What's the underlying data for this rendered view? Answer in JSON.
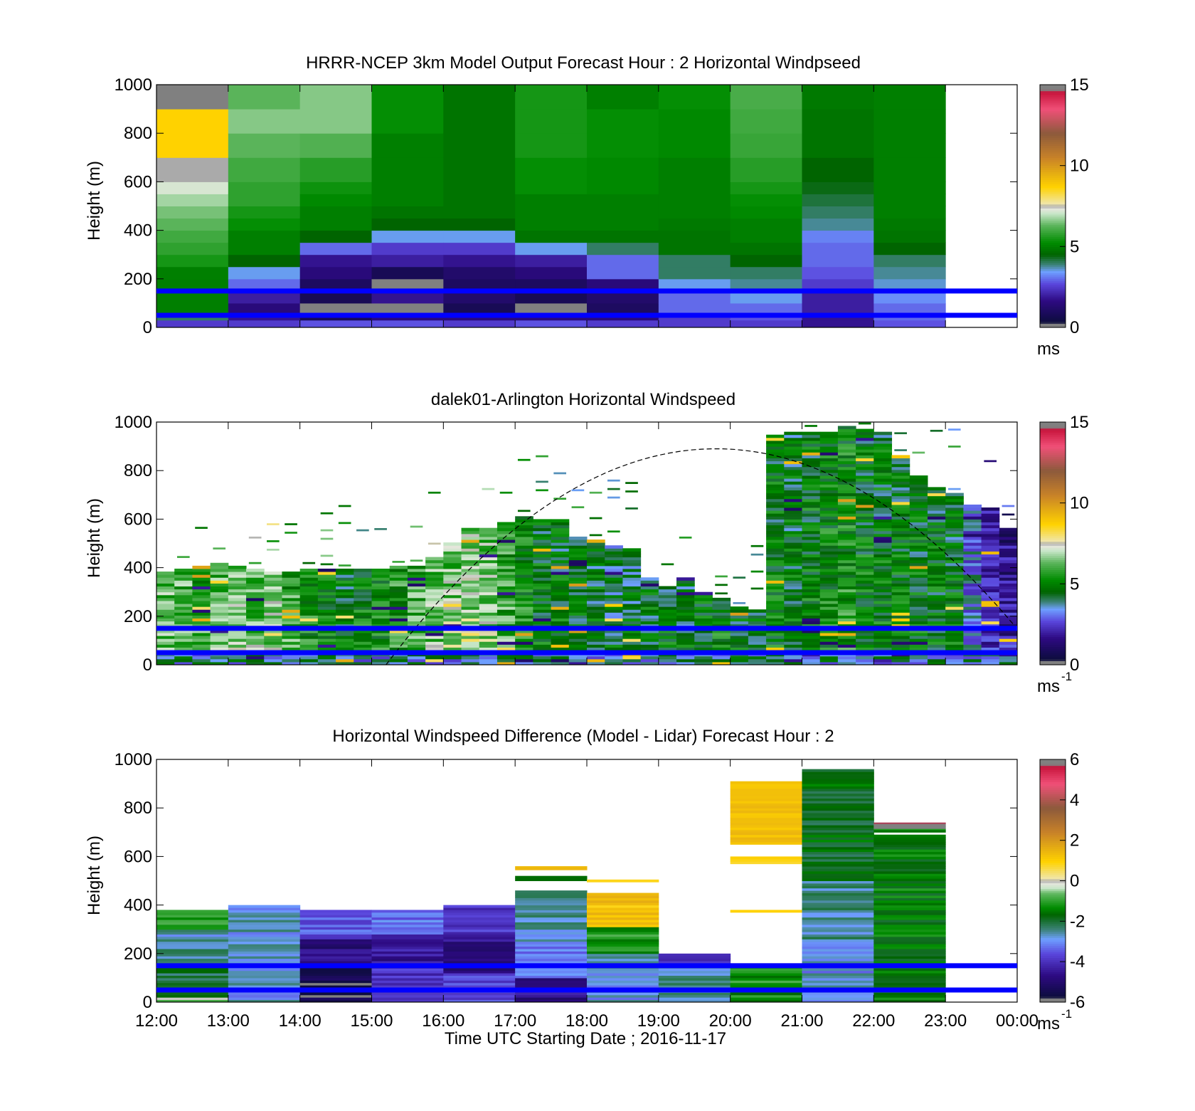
{
  "figure": {
    "xlabel": "Time UTC  Starting Date ; 2016-11-17",
    "ref_lines_m": [
      150,
      50
    ],
    "ref_line_color": "#0000ff"
  },
  "chart_data": [
    {
      "type": "heatmap",
      "title": "HRRR-NCEP 3km Model Output   Forecast Hour : 2 Horizontal Windpseed",
      "ylabel": "Height (m)",
      "ylim": [
        0,
        1000
      ],
      "yticks": [
        "0",
        "200",
        "400",
        "600",
        "800",
        "1000"
      ],
      "colorbar": {
        "ticks": [
          "0",
          "5",
          "10",
          "15"
        ],
        "range": [
          0,
          15
        ],
        "unit_label": "ms",
        "unit_sup": ""
      },
      "x": [
        "12:00",
        "13:00",
        "14:00",
        "15:00",
        "16:00",
        "17:00",
        "18:00",
        "19:00",
        "20:00",
        "21:00",
        "22:00"
      ],
      "bins_m": [
        [
          0,
          30
        ],
        [
          30,
          50
        ],
        [
          50,
          100
        ],
        [
          100,
          150
        ],
        [
          150,
          200
        ],
        [
          200,
          250
        ],
        [
          250,
          300
        ],
        [
          300,
          350
        ],
        [
          350,
          400
        ],
        [
          400,
          450
        ],
        [
          450,
          500
        ],
        [
          500,
          550
        ],
        [
          550,
          600
        ],
        [
          600,
          700
        ],
        [
          700,
          800
        ],
        [
          800,
          900
        ],
        [
          900,
          1000
        ]
      ],
      "values_ms": [
        [
          2.5,
          4.0,
          5.0,
          5.0,
          5.0,
          5.0,
          5.5,
          5.8,
          6.0,
          6.3,
          6.5,
          6.8,
          7.2,
          7.5,
          8.7,
          8.7,
          0.2
        ],
        [
          2.5,
          1.8,
          1.5,
          2.0,
          3.0,
          3.5,
          4.5,
          5.0,
          5.0,
          5.3,
          5.5,
          5.8,
          5.8,
          6.0,
          6.3,
          6.6,
          6.3
        ],
        [
          2.8,
          0.8,
          0.3,
          0.8,
          1.0,
          1.5,
          1.8,
          3.0,
          4.5,
          5.0,
          5.0,
          5.2,
          5.4,
          5.7,
          6.2,
          6.6,
          6.6
        ],
        [
          2.8,
          1.5,
          0.3,
          1.8,
          0.2,
          0.8,
          2.0,
          2.5,
          3.5,
          4.5,
          4.8,
          5.0,
          5.0,
          5.0,
          5.0,
          5.3,
          5.3
        ],
        [
          2.5,
          1.5,
          0.8,
          1.2,
          1.0,
          1.2,
          1.8,
          2.5,
          3.5,
          4.5,
          4.8,
          4.8,
          4.8,
          4.8,
          4.8,
          4.8,
          4.8
        ],
        [
          2.8,
          1.5,
          0.2,
          0.8,
          1.0,
          1.5,
          2.0,
          3.5,
          4.8,
          5.0,
          5.0,
          5.0,
          5.3,
          5.3,
          5.5,
          5.5,
          5.5
        ],
        [
          2.5,
          1.5,
          1.0,
          1.2,
          1.5,
          3.0,
          3.0,
          4.0,
          4.8,
          5.0,
          5.0,
          5.0,
          5.2,
          5.2,
          5.3,
          5.3,
          5.0
        ],
        [
          2.5,
          2.5,
          3.0,
          3.0,
          3.5,
          4.0,
          4.0,
          4.8,
          4.8,
          4.9,
          5.0,
          5.0,
          5.0,
          5.0,
          5.2,
          5.2,
          5.3
        ],
        [
          2.5,
          2.8,
          3.0,
          3.5,
          3.8,
          4.0,
          4.5,
          4.8,
          5.0,
          5.0,
          5.2,
          5.3,
          5.5,
          5.7,
          5.9,
          6.0,
          6.1
        ],
        [
          1.8,
          1.8,
          2.0,
          2.0,
          2.5,
          2.8,
          3.0,
          3.0,
          3.2,
          3.8,
          4.0,
          4.2,
          4.4,
          4.5,
          4.8,
          4.8,
          4.9
        ],
        [
          2.8,
          3.0,
          3.0,
          3.3,
          3.6,
          3.8,
          4.0,
          4.5,
          4.8,
          4.9,
          5.0,
          5.0,
          5.0,
          5.0,
          5.0,
          5.0,
          5.0
        ]
      ]
    },
    {
      "type": "heatmap",
      "title": "dalek01-Arlington  Horizontal Windspeed",
      "ylabel": "Height (m)",
      "ylim": [
        0,
        1000
      ],
      "yticks": [
        "0",
        "200",
        "400",
        "600",
        "800",
        "1000"
      ],
      "colorbar": {
        "ticks": [
          "0",
          "5",
          "10",
          "15"
        ],
        "range": [
          0,
          15
        ],
        "unit_label": "ms",
        "unit_sup": "-1"
      },
      "annotation": "dashed curve (boundary-layer height), peak ≈ 890 m near 19:30–20:00",
      "columns": [
        {
          "t": 0.0,
          "top": 380,
          "base": 6.5
        },
        {
          "t": 0.25,
          "top": 385,
          "base": 6.4
        },
        {
          "t": 0.5,
          "top": 400,
          "base": 6.0
        },
        {
          "t": 0.75,
          "top": 420,
          "base": 6.3
        },
        {
          "t": 1.0,
          "top": 400,
          "base": 6.8
        },
        {
          "t": 1.25,
          "top": 395,
          "base": 6.5
        },
        {
          "t": 1.5,
          "top": 380,
          "base": 6.7
        },
        {
          "t": 1.75,
          "top": 380,
          "base": 6.0
        },
        {
          "t": 2.0,
          "top": 395,
          "base": 5.5
        },
        {
          "t": 2.25,
          "top": 390,
          "base": 5.2
        },
        {
          "t": 2.5,
          "top": 385,
          "base": 5.0
        },
        {
          "t": 2.75,
          "top": 390,
          "base": 5.3
        },
        {
          "t": 3.0,
          "top": 395,
          "base": 5.4
        },
        {
          "t": 3.25,
          "top": 400,
          "base": 5.8
        },
        {
          "t": 3.5,
          "top": 405,
          "base": 6.2
        },
        {
          "t": 3.75,
          "top": 440,
          "base": 6.5
        },
        {
          "t": 4.0,
          "top": 500,
          "base": 6.7
        },
        {
          "t": 4.25,
          "top": 555,
          "base": 6.8
        },
        {
          "t": 4.5,
          "top": 560,
          "base": 6.7
        },
        {
          "t": 4.75,
          "top": 580,
          "base": 6.0
        },
        {
          "t": 5.0,
          "top": 610,
          "base": 5.5
        },
        {
          "t": 5.25,
          "top": 590,
          "base": 5.0
        },
        {
          "t": 5.5,
          "top": 590,
          "base": 4.9
        },
        {
          "t": 5.75,
          "top": 520,
          "base": 4.8
        },
        {
          "t": 6.0,
          "top": 510,
          "base": 4.8
        },
        {
          "t": 6.25,
          "top": 490,
          "base": 4.5
        },
        {
          "t": 6.5,
          "top": 480,
          "base": 4.6
        },
        {
          "t": 6.75,
          "top": 360,
          "base": 4.8
        },
        {
          "t": 7.0,
          "top": 320,
          "base": 5.0
        },
        {
          "t": 7.25,
          "top": 360,
          "base": 4.8
        },
        {
          "t": 7.5,
          "top": 300,
          "base": 5.0
        },
        {
          "t": 7.75,
          "top": 270,
          "base": 5.3
        },
        {
          "t": 8.0,
          "top": 230,
          "base": 5.0
        },
        {
          "t": 8.25,
          "top": 220,
          "base": 4.9
        },
        {
          "t": 8.5,
          "top": 940,
          "base": 5.0
        },
        {
          "t": 8.75,
          "top": 960,
          "base": 4.8
        },
        {
          "t": 9.0,
          "top": 960,
          "base": 5.1
        },
        {
          "t": 9.25,
          "top": 960,
          "base": 5.3
        },
        {
          "t": 9.5,
          "top": 980,
          "base": 5.5
        },
        {
          "t": 9.75,
          "top": 970,
          "base": 5.1
        },
        {
          "t": 10.0,
          "top": 950,
          "base": 5.0
        },
        {
          "t": 10.25,
          "top": 860,
          "base": 5.0
        },
        {
          "t": 10.5,
          "top": 780,
          "base": 5.0
        },
        {
          "t": 10.75,
          "top": 730,
          "base": 4.9
        },
        {
          "t": 11.0,
          "top": 700,
          "base": 4.9
        },
        {
          "t": 11.25,
          "top": 660,
          "base": 3.5
        },
        {
          "t": 11.5,
          "top": 640,
          "base": 2.5
        },
        {
          "t": 11.75,
          "top": 560,
          "base": 2.0
        }
      ]
    },
    {
      "type": "heatmap",
      "title": "Horizontal Windspeed Difference (Model - Lidar) Forecast Hour : 2",
      "ylabel": "Height (m)",
      "ylim": [
        0,
        1000
      ],
      "yticks": [
        "0",
        "200",
        "400",
        "600",
        "800",
        "1000"
      ],
      "xlabel": "Time UTC  Starting Date ; 2016-11-17",
      "xticks": [
        "12:00",
        "13:00",
        "14:00",
        "15:00",
        "16:00",
        "17:00",
        "18:00",
        "19:00",
        "20:00",
        "21:00",
        "22:00",
        "23:00",
        "00:00"
      ],
      "colorbar": {
        "ticks": [
          "-6",
          "-4",
          "-2",
          "0",
          "2",
          "4",
          "6"
        ],
        "range": [
          -6,
          6
        ],
        "unit_label": "ms",
        "unit_sup": "-1"
      },
      "columns": [
        {
          "hour": "12:00",
          "top": 380,
          "bands": [
            [
              0,
              20,
              -0.5
            ],
            [
              20,
              160,
              -2.0
            ],
            [
              160,
              300,
              -2.6
            ],
            [
              300,
              380,
              -1.0
            ]
          ]
        },
        {
          "hour": "13:00",
          "top": 400,
          "bands": [
            [
              0,
              400,
              -2.8
            ]
          ]
        },
        {
          "hour": "14:00",
          "top": 380,
          "bands": [
            [
              0,
              150,
              -5.5
            ],
            [
              150,
              260,
              -4.8
            ],
            [
              260,
              380,
              -3.5
            ]
          ]
        },
        {
          "hour": "15:00",
          "top": 380,
          "bands": [
            [
              0,
              150,
              -4.0
            ],
            [
              150,
              280,
              -4.4
            ],
            [
              280,
              380,
              -3.2
            ]
          ]
        },
        {
          "hour": "16:00",
          "top": 400,
          "bands": [
            [
              0,
              120,
              -3.6
            ],
            [
              120,
              280,
              -4.6
            ],
            [
              280,
              400,
              -3.8
            ]
          ]
        },
        {
          "hour": "17:00",
          "top": 460,
          "bands": [
            [
              0,
              100,
              -4.6
            ],
            [
              100,
              250,
              -3.2
            ],
            [
              250,
              460,
              -2.6
            ]
          ],
          "extras": [
            [
              500,
              520,
              -1.5
            ],
            [
              545,
              560,
              1.3
            ]
          ]
        },
        {
          "hour": "18:00",
          "top": 450,
          "bands": [
            [
              0,
              200,
              -2.8
            ],
            [
              200,
              310,
              -1.2
            ],
            [
              310,
              450,
              1.3
            ]
          ],
          "extras": [
            [
              495,
              505,
              0.8
            ]
          ]
        },
        {
          "hour": "19:00",
          "top": 200,
          "bands": [
            [
              0,
              160,
              -2.6
            ],
            [
              160,
              200,
              -3.8
            ]
          ]
        },
        {
          "hour": "20:00",
          "top": 910,
          "bands": [
            [
              0,
              160,
              -1.2
            ]
          ],
          "extras": [
            [
              370,
              380,
              0.8
            ],
            [
              570,
              600,
              0.9
            ],
            [
              650,
              910,
              1.3
            ]
          ]
        },
        {
          "hour": "21:00",
          "top": 960,
          "bands": [
            [
              0,
              250,
              -2.9
            ],
            [
              250,
              500,
              -2.5
            ],
            [
              500,
              960,
              -1.8
            ]
          ]
        },
        {
          "hour": "22:00",
          "top": 740,
          "bands": [
            [
              0,
              690,
              -1.5
            ],
            [
              700,
              715,
              -1.2
            ],
            [
              715,
              740,
              6.0
            ]
          ]
        }
      ]
    }
  ]
}
